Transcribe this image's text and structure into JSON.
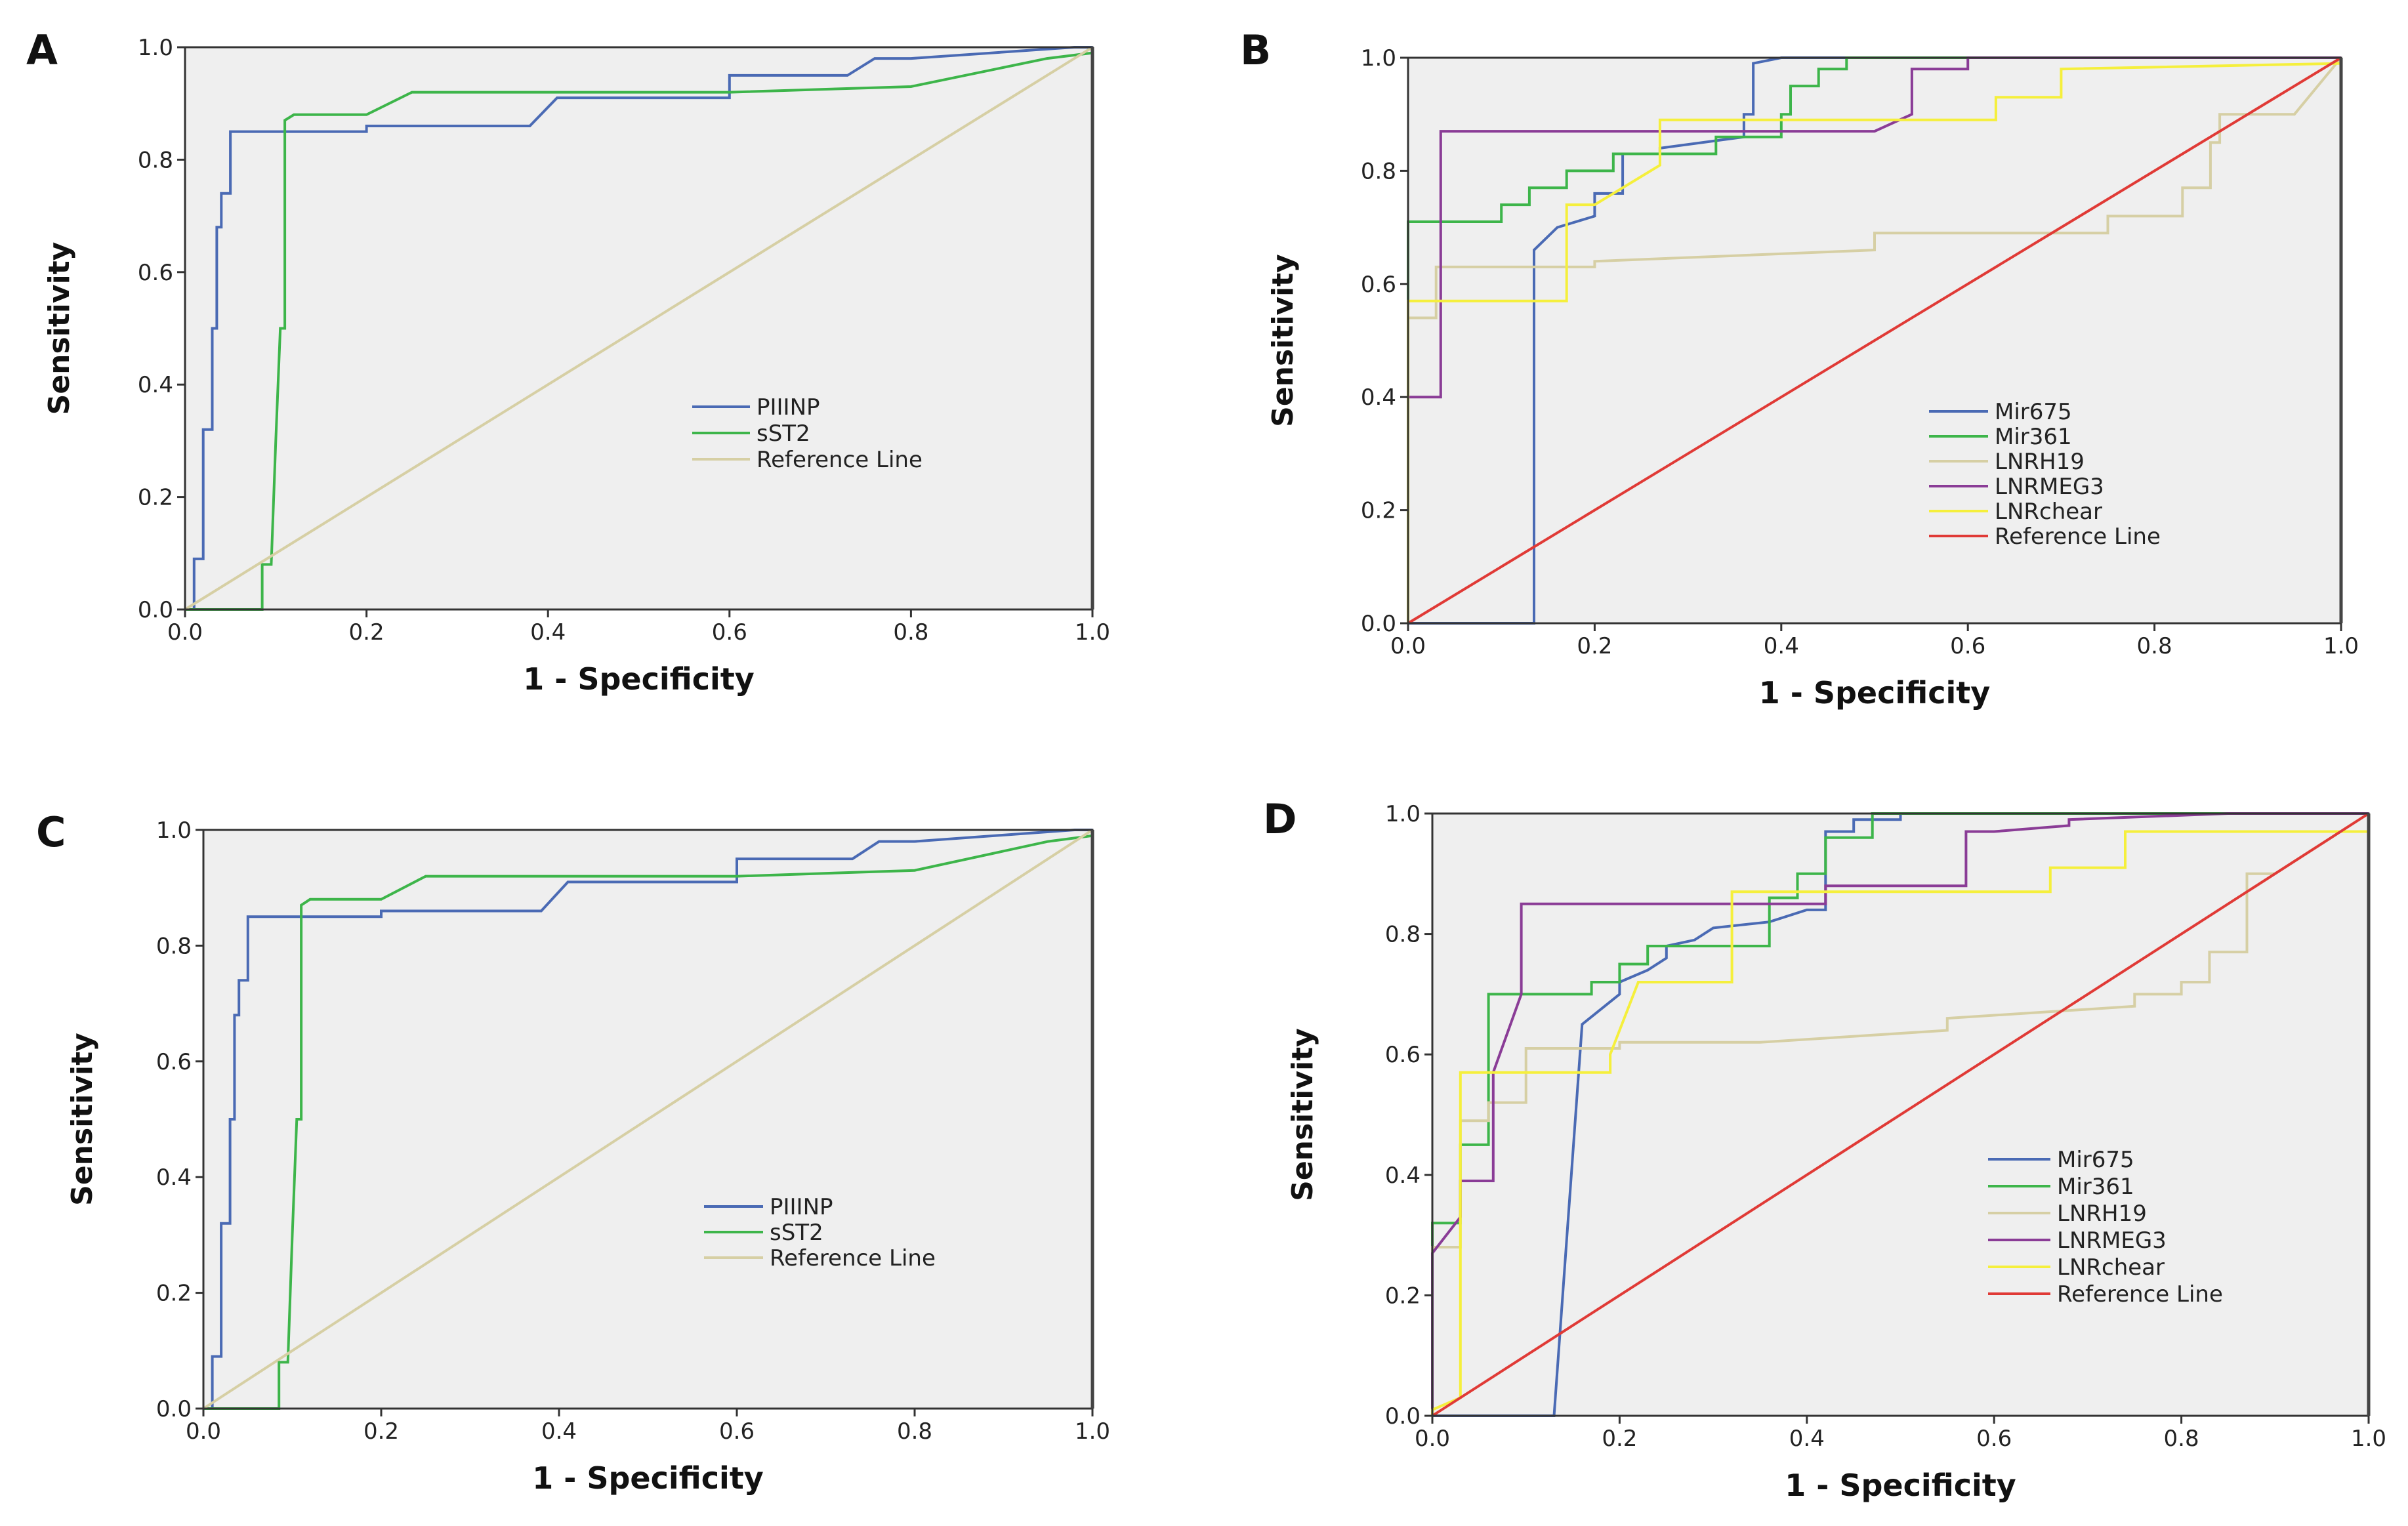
{
  "colors": {
    "background": "#efefef",
    "PIIINP": "#4a6ab4",
    "sST2": "#3db54a",
    "Mir675": "#4a6ab4",
    "Mir361": "#3db54a",
    "LNRH19": "#d6cfa4",
    "LNRMEG3": "#8a3c96",
    "LNRchear": "#f5ef3c",
    "reference_beige": "#d6cfa4",
    "reference_red": "#e03a36"
  },
  "chart_data": [
    {
      "type": "line",
      "panel": "A",
      "title": "",
      "xlabel": "1 - Specificity",
      "ylabel": "Sensitivity",
      "xlim": [
        0,
        1
      ],
      "ylim": [
        0,
        1
      ],
      "xticks": [
        "0.0",
        "0.2",
        "0.4",
        "0.6",
        "0.8",
        "1.0"
      ],
      "yticks": [
        "0.0",
        "0.2",
        "0.4",
        "0.6",
        "0.8",
        "1.0"
      ],
      "legend_position": "center-right",
      "series": [
        {
          "name": "PIIINP",
          "color_key": "PIIINP",
          "x": [
            0.0,
            0.01,
            0.01,
            0.02,
            0.02,
            0.03,
            0.03,
            0.035,
            0.035,
            0.04,
            0.04,
            0.05,
            0.05,
            0.2,
            0.2,
            0.38,
            0.41,
            0.6,
            0.6,
            0.73,
            0.76,
            0.8,
            0.98,
            1.0
          ],
          "y": [
            0.0,
            0.0,
            0.09,
            0.09,
            0.32,
            0.32,
            0.5,
            0.5,
            0.68,
            0.68,
            0.74,
            0.74,
            0.85,
            0.85,
            0.86,
            0.86,
            0.91,
            0.91,
            0.95,
            0.95,
            0.98,
            0.98,
            1.0,
            1.0
          ]
        },
        {
          "name": "sST2",
          "color_key": "sST2",
          "x": [
            0.0,
            0.085,
            0.085,
            0.095,
            0.1,
            0.105,
            0.11,
            0.11,
            0.12,
            0.15,
            0.2,
            0.25,
            0.27,
            0.6,
            0.8,
            0.95,
            1.0
          ],
          "y": [
            0.0,
            0.0,
            0.08,
            0.08,
            0.3,
            0.5,
            0.5,
            0.87,
            0.88,
            0.88,
            0.88,
            0.92,
            0.92,
            0.92,
            0.93,
            0.98,
            0.99
          ]
        },
        {
          "name": "Reference Line",
          "color_key": "reference_beige",
          "x": [
            0,
            1
          ],
          "y": [
            0,
            1
          ]
        }
      ]
    },
    {
      "type": "line",
      "panel": "B",
      "title": "",
      "xlabel": "1 - Specificity",
      "ylabel": "Sensitivity",
      "xlim": [
        0,
        1
      ],
      "ylim": [
        0,
        1
      ],
      "xticks": [
        "0.0",
        "0.2",
        "0.4",
        "0.6",
        "0.8",
        "1.0"
      ],
      "yticks": [
        "0.0",
        "0.2",
        "0.4",
        "0.6",
        "0.8",
        "1.0"
      ],
      "legend_position": "center-right",
      "series": [
        {
          "name": "Mir675",
          "color_key": "Mir675",
          "x": [
            0.0,
            0.135,
            0.135,
            0.16,
            0.2,
            0.2,
            0.23,
            0.23,
            0.27,
            0.27,
            0.36,
            0.36,
            0.37,
            0.37,
            0.4,
            1.0
          ],
          "y": [
            0.0,
            0.0,
            0.66,
            0.7,
            0.72,
            0.76,
            0.76,
            0.83,
            0.83,
            0.84,
            0.86,
            0.9,
            0.9,
            0.99,
            1.0,
            1.0
          ]
        },
        {
          "name": "Mir361",
          "color_key": "Mir361",
          "x": [
            0.0,
            0.0,
            0.1,
            0.1,
            0.13,
            0.13,
            0.17,
            0.17,
            0.22,
            0.22,
            0.33,
            0.33,
            0.4,
            0.4,
            0.41,
            0.41,
            0.44,
            0.44,
            0.47,
            0.47,
            1.0
          ],
          "y": [
            0.0,
            0.71,
            0.71,
            0.74,
            0.74,
            0.77,
            0.77,
            0.8,
            0.8,
            0.83,
            0.83,
            0.86,
            0.86,
            0.9,
            0.9,
            0.95,
            0.95,
            0.98,
            0.98,
            1.0,
            1.0
          ]
        },
        {
          "name": "LNRH19",
          "color_key": "LNRH19",
          "x": [
            0.0,
            0.0,
            0.03,
            0.03,
            0.2,
            0.2,
            0.35,
            0.5,
            0.5,
            0.75,
            0.75,
            0.83,
            0.83,
            0.86,
            0.86,
            0.87,
            0.87,
            0.95,
            1.0
          ],
          "y": [
            0.0,
            0.54,
            0.54,
            0.63,
            0.63,
            0.64,
            0.65,
            0.66,
            0.69,
            0.69,
            0.72,
            0.72,
            0.77,
            0.77,
            0.85,
            0.85,
            0.9,
            0.9,
            1.0
          ]
        },
        {
          "name": "LNRMEG3",
          "color_key": "LNRMEG3",
          "x": [
            0.0,
            0.0,
            0.035,
            0.035,
            0.5,
            0.54,
            0.54,
            0.6,
            0.6,
            1.0
          ],
          "y": [
            0.0,
            0.4,
            0.4,
            0.87,
            0.87,
            0.9,
            0.98,
            0.98,
            1.0,
            1.0
          ]
        },
        {
          "name": "LNRchear",
          "color_key": "LNRchear",
          "x": [
            0.0,
            0.0,
            0.17,
            0.17,
            0.2,
            0.2,
            0.27,
            0.27,
            0.4,
            0.4,
            0.63,
            0.63,
            0.7,
            0.7,
            1.0
          ],
          "y": [
            0.0,
            0.57,
            0.57,
            0.74,
            0.74,
            0.74,
            0.81,
            0.89,
            0.89,
            0.89,
            0.89,
            0.93,
            0.93,
            0.98,
            0.99
          ]
        },
        {
          "name": "Reference Line",
          "color_key": "reference_red",
          "x": [
            0,
            1
          ],
          "y": [
            0,
            1
          ]
        }
      ]
    },
    {
      "type": "line",
      "panel": "C",
      "title": "",
      "xlabel": "1 - Specificity",
      "ylabel": "Sensitivity",
      "xlim": [
        0,
        1
      ],
      "ylim": [
        0,
        1
      ],
      "xticks": [
        "0.0",
        "0.2",
        "0.4",
        "0.6",
        "0.8",
        "1.0"
      ],
      "yticks": [
        "0.0",
        "0.2",
        "0.4",
        "0.6",
        "0.8",
        "1.0"
      ],
      "legend_position": "center-right",
      "series": [
        {
          "name": "PIIINP",
          "color_key": "PIIINP",
          "x": [
            0.0,
            0.01,
            0.01,
            0.02,
            0.02,
            0.03,
            0.03,
            0.035,
            0.035,
            0.04,
            0.04,
            0.05,
            0.05,
            0.2,
            0.2,
            0.38,
            0.41,
            0.6,
            0.6,
            0.73,
            0.76,
            0.8,
            0.98,
            1.0
          ],
          "y": [
            0.0,
            0.0,
            0.09,
            0.09,
            0.32,
            0.32,
            0.5,
            0.5,
            0.68,
            0.68,
            0.74,
            0.74,
            0.85,
            0.85,
            0.86,
            0.86,
            0.91,
            0.91,
            0.95,
            0.95,
            0.98,
            0.98,
            1.0,
            1.0
          ]
        },
        {
          "name": "sST2",
          "color_key": "sST2",
          "x": [
            0.0,
            0.085,
            0.085,
            0.095,
            0.1,
            0.105,
            0.11,
            0.11,
            0.12,
            0.15,
            0.2,
            0.25,
            0.27,
            0.6,
            0.8,
            0.95,
            1.0
          ],
          "y": [
            0.0,
            0.0,
            0.08,
            0.08,
            0.3,
            0.5,
            0.5,
            0.87,
            0.88,
            0.88,
            0.88,
            0.92,
            0.92,
            0.92,
            0.93,
            0.98,
            0.99
          ]
        },
        {
          "name": "Reference Line",
          "color_key": "reference_beige",
          "x": [
            0,
            1
          ],
          "y": [
            0,
            1
          ]
        }
      ]
    },
    {
      "type": "line",
      "panel": "D",
      "title": "",
      "xlabel": "1 - Specificity",
      "ylabel": "Sensitivity",
      "xlim": [
        0,
        1
      ],
      "ylim": [
        0,
        1
      ],
      "xticks": [
        "0.0",
        "0.2",
        "0.4",
        "0.6",
        "0.8",
        "1.0"
      ],
      "yticks": [
        "0.0",
        "0.2",
        "0.4",
        "0.6",
        "0.8",
        "1.0"
      ],
      "legend_position": "center-right",
      "series": [
        {
          "name": "Mir675",
          "color_key": "Mir675",
          "x": [
            0.0,
            0.13,
            0.16,
            0.2,
            0.2,
            0.23,
            0.25,
            0.25,
            0.28,
            0.3,
            0.36,
            0.4,
            0.42,
            0.42,
            0.45,
            0.45,
            0.5,
            0.5,
            1.0
          ],
          "y": [
            0.0,
            0.0,
            0.65,
            0.7,
            0.72,
            0.74,
            0.76,
            0.78,
            0.79,
            0.81,
            0.82,
            0.84,
            0.84,
            0.97,
            0.97,
            0.99,
            0.99,
            1.0,
            1.0
          ]
        },
        {
          "name": "Mir361",
          "color_key": "Mir361",
          "x": [
            0.0,
            0.0,
            0.03,
            0.03,
            0.06,
            0.06,
            0.17,
            0.17,
            0.2,
            0.2,
            0.23,
            0.23,
            0.36,
            0.36,
            0.39,
            0.39,
            0.42,
            0.42,
            0.47,
            0.47,
            1.0
          ],
          "y": [
            0.0,
            0.32,
            0.32,
            0.45,
            0.45,
            0.7,
            0.7,
            0.72,
            0.72,
            0.75,
            0.75,
            0.78,
            0.78,
            0.86,
            0.86,
            0.9,
            0.9,
            0.96,
            0.96,
            1.0,
            1.0
          ]
        },
        {
          "name": "LNRH19",
          "color_key": "LNRH19",
          "x": [
            0.0,
            0.0,
            0.03,
            0.03,
            0.06,
            0.06,
            0.1,
            0.1,
            0.2,
            0.2,
            0.35,
            0.55,
            0.55,
            0.75,
            0.75,
            0.8,
            0.8,
            0.83,
            0.83,
            0.87,
            0.87,
            0.9,
            1.0
          ],
          "y": [
            0.0,
            0.28,
            0.28,
            0.49,
            0.49,
            0.52,
            0.52,
            0.61,
            0.61,
            0.62,
            0.62,
            0.64,
            0.66,
            0.68,
            0.7,
            0.7,
            0.72,
            0.72,
            0.77,
            0.77,
            0.9,
            0.9,
            1.0
          ]
        },
        {
          "name": "LNRMEG3",
          "color_key": "LNRMEG3",
          "x": [
            0.0,
            0.0,
            0.03,
            0.03,
            0.065,
            0.065,
            0.095,
            0.095,
            0.42,
            0.42,
            0.57,
            0.57,
            0.6,
            0.68,
            0.68,
            0.85,
            1.0
          ],
          "y": [
            0.0,
            0.27,
            0.33,
            0.39,
            0.39,
            0.57,
            0.7,
            0.85,
            0.85,
            0.88,
            0.88,
            0.97,
            0.97,
            0.98,
            0.99,
            1.0,
            1.0
          ]
        },
        {
          "name": "LNRchear",
          "color_key": "LNRchear",
          "x": [
            0.0,
            0.0,
            0.03,
            0.03,
            0.19,
            0.19,
            0.22,
            0.27,
            0.32,
            0.32,
            0.33,
            0.34,
            0.34,
            0.42,
            0.42,
            0.66,
            0.66,
            0.74,
            0.74,
            1.0
          ],
          "y": [
            0.0,
            0.01,
            0.03,
            0.57,
            0.57,
            0.6,
            0.72,
            0.72,
            0.72,
            0.87,
            0.87,
            0.87,
            0.87,
            0.87,
            0.87,
            0.87,
            0.91,
            0.91,
            0.97,
            0.97
          ]
        },
        {
          "name": "Reference Line",
          "color_key": "reference_red",
          "x": [
            0,
            1
          ],
          "y": [
            0,
            1
          ]
        }
      ]
    }
  ]
}
